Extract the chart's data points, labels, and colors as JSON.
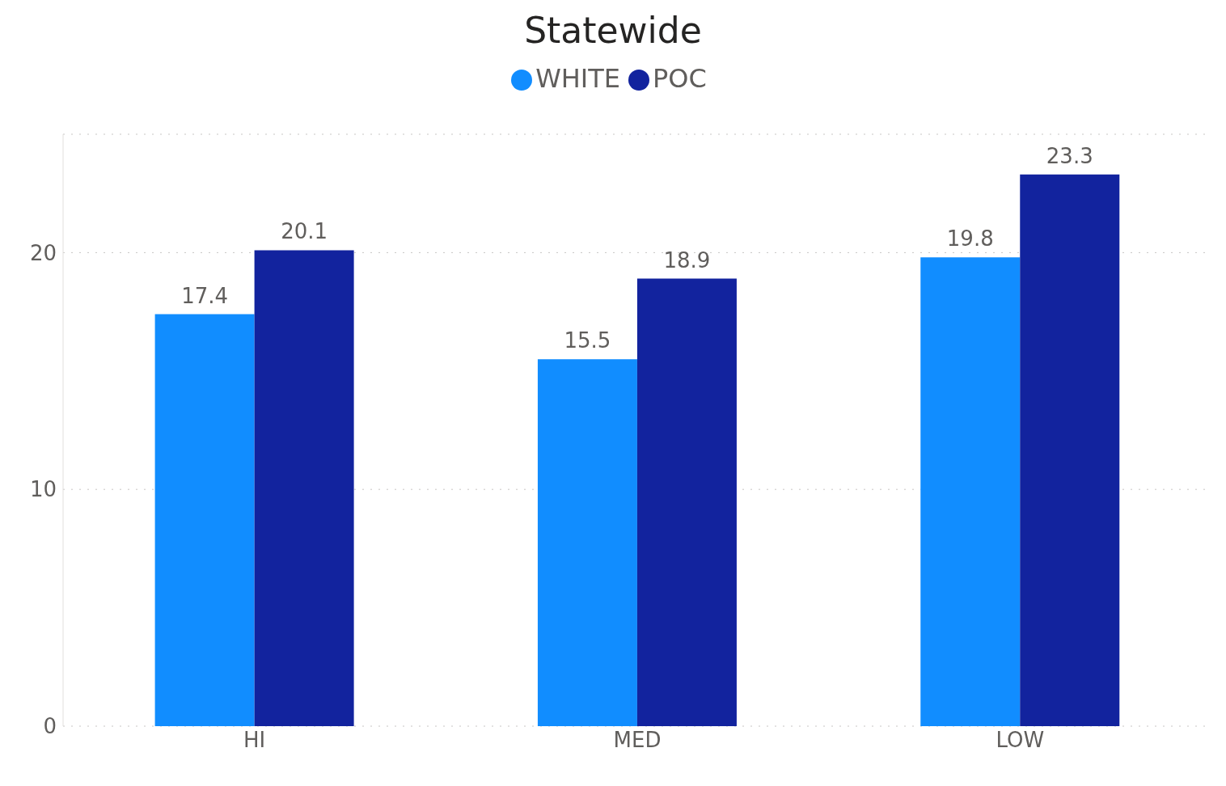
{
  "chart_data": {
    "type": "bar",
    "title": "Statewide",
    "categories": [
      "HI",
      "MED",
      "LOW"
    ],
    "series": [
      {
        "name": "WHITE",
        "color": "#118dff",
        "values": [
          17.4,
          15.5,
          19.8
        ]
      },
      {
        "name": "POC",
        "color": "#12239e",
        "values": [
          20.1,
          18.9,
          23.3
        ]
      }
    ],
    "ylim": [
      0,
      25
    ],
    "yticks": [
      0,
      10,
      20
    ],
    "grid": "y",
    "legend": "top",
    "data_labels": true
  }
}
